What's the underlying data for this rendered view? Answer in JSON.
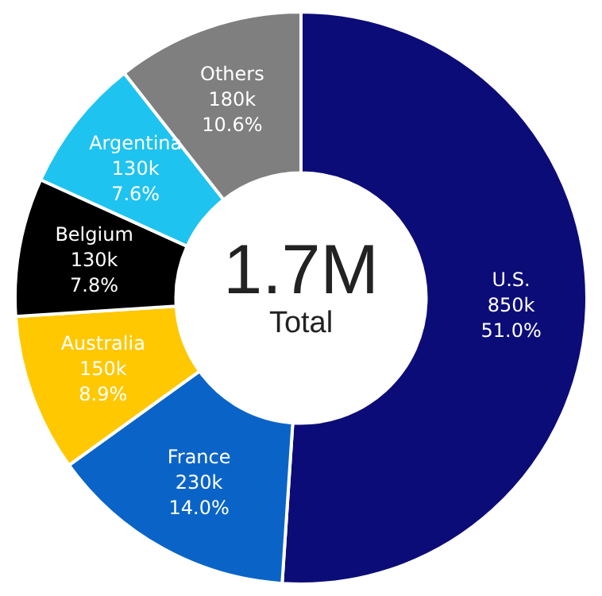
{
  "chart_data": {
    "type": "donut",
    "title": "1.7M",
    "subtitle": "Total",
    "categories": [
      "U.S.",
      "France",
      "Australia",
      "Belgium",
      "Argentina",
      "Others"
    ],
    "values": [
      51.0,
      14.0,
      8.9,
      7.8,
      7.6,
      10.6
    ],
    "value_labels": [
      "850k\n51.0%",
      "230k\n14.0%",
      "150k\n8.9%",
      "130k\n7.8%",
      "130k\n7.6%",
      "180k\n10.6%"
    ],
    "colors": [
      "#0c0c78",
      "#0a64c8",
      "#ffc800",
      "#000000",
      "#1ec3f0",
      "#7f7f7f"
    ],
    "legend": false
  }
}
